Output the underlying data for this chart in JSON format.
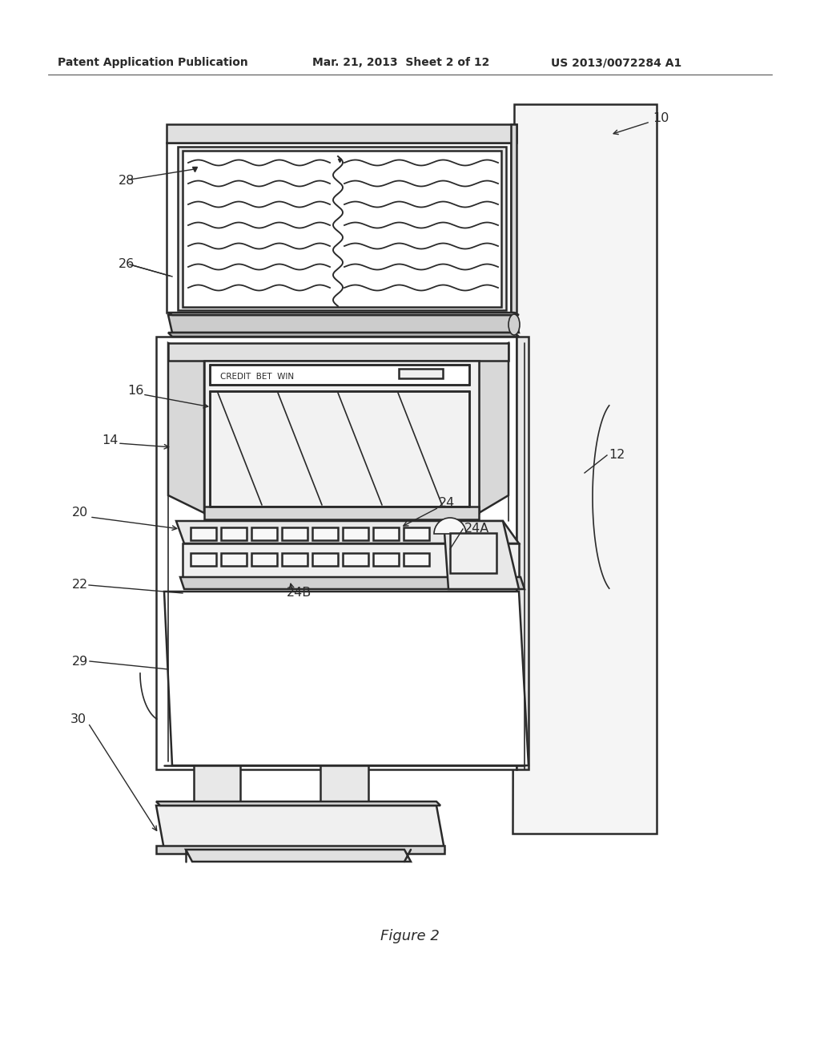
{
  "bg_color": "#ffffff",
  "line_color": "#2a2a2a",
  "header_left": "Patent Application Publication",
  "header_mid": "Mar. 21, 2013  Sheet 2 of 12",
  "header_right": "US 2013/0072284 A1",
  "figure_label": "Figure 2",
  "lw_main": 1.8,
  "lw_thin": 1.2,
  "lw_leader": 1.0
}
